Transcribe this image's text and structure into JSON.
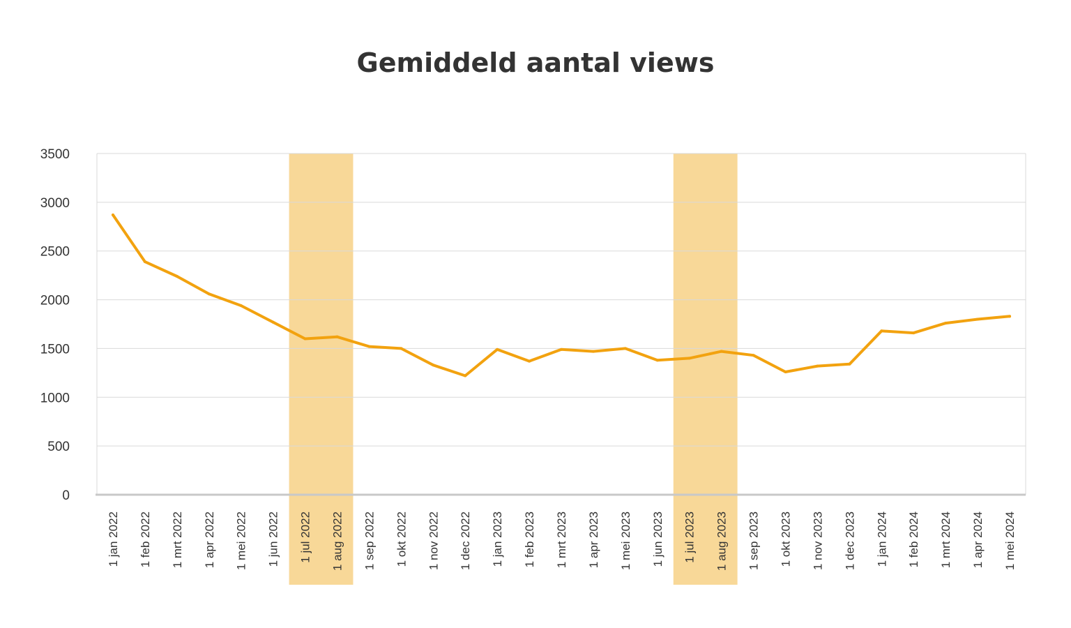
{
  "chart_data": {
    "type": "line",
    "title": "Gemiddeld aantal views",
    "xlabel": "",
    "ylabel": "",
    "ylim": [
      0,
      3500
    ],
    "yticks": [
      0,
      500,
      1000,
      1500,
      2000,
      2500,
      3000,
      3500
    ],
    "grid": true,
    "legend": "none",
    "colors": {
      "line": "#F2A20F",
      "highlight": "#F8D898",
      "grid": "#D9D9D9",
      "axis": "#C8C8C8"
    },
    "categories": [
      "1 jan 2022",
      "1 feb 2022",
      "1 mrt 2022",
      "1 apr 2022",
      "1 mei 2022",
      "1 jun 2022",
      "1 jul 2022",
      "1 aug 2022",
      "1 sep 2022",
      "1 okt 2022",
      "1 nov 2022",
      "1 dec 2022",
      "1 jan 2023",
      "1 feb 2023",
      "1 mrt 2023",
      "1 apr 2023",
      "1 mei 2023",
      "1 jun 2023",
      "1 jul 2023",
      "1 aug 2023",
      "1 sep 2023",
      "1 okt 2023",
      "1 nov 2023",
      "1 dec 2023",
      "1 jan 2024",
      "1 feb 2024",
      "1 mrt 2024",
      "1 apr 2024",
      "1 mei 2024"
    ],
    "series": [
      {
        "values": [
          2870,
          2390,
          2240,
          2060,
          1940,
          1770,
          1600,
          1620,
          1520,
          1500,
          1330,
          1220,
          1490,
          1370,
          1490,
          1470,
          1500,
          1380,
          1400,
          1470,
          1430,
          1260,
          1320,
          1340,
          1680,
          1660,
          1760,
          1800,
          1830
        ]
      }
    ],
    "highlight_ranges": [
      {
        "from": "1 jul 2022",
        "to": "1 aug 2022"
      },
      {
        "from": "1 jul 2023",
        "to": "1 aug 2023"
      }
    ]
  }
}
